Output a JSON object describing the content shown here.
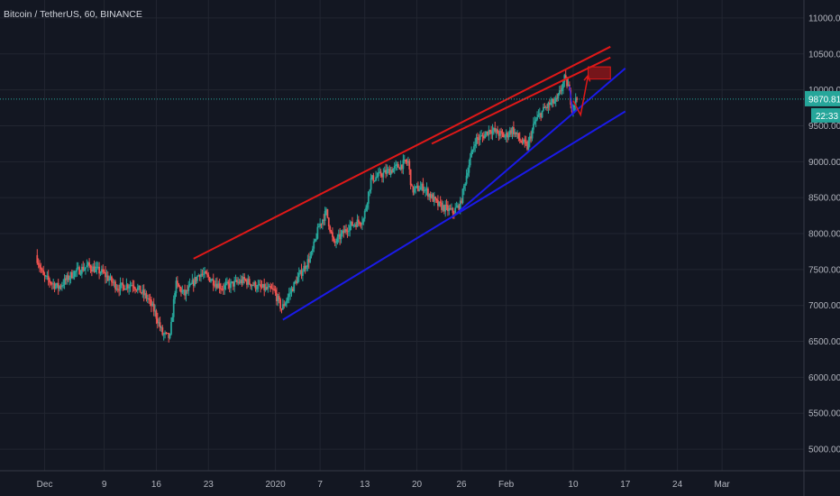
{
  "header": {
    "title": "Bitcoin / TetherUS, 60, BINANCE"
  },
  "colors": {
    "background": "#131722",
    "grid": "#222631",
    "text": "#b2b5be",
    "candle_up": "#26a69a",
    "candle_down": "#ef5350",
    "trend_red": "#e01818",
    "trend_blue": "#1a1ae8",
    "price_label_bg": "#26a69a",
    "price_line": "#26a69a"
  },
  "chart_data": {
    "type": "candlestick",
    "symbol": "Bitcoin / TetherUS",
    "interval": "60",
    "exchange": "BINANCE",
    "x_range": [
      "2019-11-25",
      "2020-03-12"
    ],
    "ylim": [
      4700,
      11250
    ],
    "y_scale": "linear",
    "y_ticks": [
      "5000.00",
      "5500.00",
      "6000.00",
      "6500.00",
      "7000.00",
      "7500.00",
      "8000.00",
      "8500.00",
      "9000.00",
      "9500.00",
      "10000.00",
      "10500.00",
      "11000.00"
    ],
    "x_ticks": [
      {
        "label": "Dec",
        "date": "2019-12-01"
      },
      {
        "label": "9",
        "date": "2019-12-09"
      },
      {
        "label": "16",
        "date": "2019-12-16"
      },
      {
        "label": "23",
        "date": "2019-12-23"
      },
      {
        "label": "2020",
        "date": "2020-01-01"
      },
      {
        "label": "7",
        "date": "2020-01-07"
      },
      {
        "label": "13",
        "date": "2020-01-13"
      },
      {
        "label": "20",
        "date": "2020-01-20"
      },
      {
        "label": "26",
        "date": "2020-01-26"
      },
      {
        "label": "Feb",
        "date": "2020-02-01"
      },
      {
        "label": "10",
        "date": "2020-02-10"
      },
      {
        "label": "17",
        "date": "2020-02-17"
      },
      {
        "label": "24",
        "date": "2020-02-24"
      },
      {
        "label": "Mar",
        "date": "2020-03-01"
      }
    ],
    "grid": true,
    "price_path": [
      {
        "date": "2019-11-30",
        "close": 7700
      },
      {
        "date": "2019-12-01",
        "close": 7400
      },
      {
        "date": "2019-12-03",
        "close": 7250
      },
      {
        "date": "2019-12-05",
        "close": 7450
      },
      {
        "date": "2019-12-07",
        "close": 7550
      },
      {
        "date": "2019-12-09",
        "close": 7450
      },
      {
        "date": "2019-12-11",
        "close": 7250
      },
      {
        "date": "2019-12-13",
        "close": 7300
      },
      {
        "date": "2019-12-15",
        "close": 7100
      },
      {
        "date": "2019-12-16",
        "close": 6900
      },
      {
        "date": "2019-12-17",
        "close": 6600
      },
      {
        "date": "2019-12-18",
        "close": 6550
      },
      {
        "date": "2019-12-18T18:00",
        "close": 7300
      },
      {
        "date": "2019-12-20",
        "close": 7150
      },
      {
        "date": "2019-12-22",
        "close": 7450
      },
      {
        "date": "2019-12-23",
        "close": 7400
      },
      {
        "date": "2019-12-25",
        "close": 7250
      },
      {
        "date": "2019-12-28",
        "close": 7350
      },
      {
        "date": "2019-12-30",
        "close": 7250
      },
      {
        "date": "2020-01-01",
        "close": 7200
      },
      {
        "date": "2020-01-02",
        "close": 6950
      },
      {
        "date": "2020-01-04",
        "close": 7350
      },
      {
        "date": "2020-01-06",
        "close": 7700
      },
      {
        "date": "2020-01-07",
        "close": 8100
      },
      {
        "date": "2020-01-08",
        "close": 8300
      },
      {
        "date": "2020-01-09",
        "close": 7850
      },
      {
        "date": "2020-01-11",
        "close": 8100
      },
      {
        "date": "2020-01-13",
        "close": 8200
      },
      {
        "date": "2020-01-14",
        "close": 8750
      },
      {
        "date": "2020-01-15",
        "close": 8800
      },
      {
        "date": "2020-01-17",
        "close": 8900
      },
      {
        "date": "2020-01-19",
        "close": 9000
      },
      {
        "date": "2020-01-19T12:00",
        "close": 8600
      },
      {
        "date": "2020-01-21",
        "close": 8650
      },
      {
        "date": "2020-01-23",
        "close": 8400
      },
      {
        "date": "2020-01-24",
        "close": 8350
      },
      {
        "date": "2020-01-25",
        "close": 8300
      },
      {
        "date": "2020-01-26",
        "close": 8400
      },
      {
        "date": "2020-01-27",
        "close": 8900
      },
      {
        "date": "2020-01-28",
        "close": 9300
      },
      {
        "date": "2020-01-29",
        "close": 9350
      },
      {
        "date": "2020-01-30",
        "close": 9450
      },
      {
        "date": "2020-02-01",
        "close": 9350
      },
      {
        "date": "2020-02-02",
        "close": 9450
      },
      {
        "date": "2020-02-03",
        "close": 9300
      },
      {
        "date": "2020-02-04",
        "close": 9200
      },
      {
        "date": "2020-02-05",
        "close": 9550
      },
      {
        "date": "2020-02-06",
        "close": 9700
      },
      {
        "date": "2020-02-07",
        "close": 9800
      },
      {
        "date": "2020-02-08",
        "close": 9850
      },
      {
        "date": "2020-02-09",
        "close": 10150
      },
      {
        "date": "2020-02-09T12:00",
        "close": 10050
      },
      {
        "date": "2020-02-10",
        "close": 9750
      },
      {
        "date": "2020-02-10T14:00",
        "close": 9870.81
      }
    ],
    "last_price": "9870.81",
    "countdown": "22:33",
    "annotations": [
      {
        "type": "trendline",
        "color": "red",
        "from": {
          "date": "2019-12-21",
          "price": 7650
        },
        "to": {
          "date": "2020-02-15",
          "price": 10600
        }
      },
      {
        "type": "trendline",
        "color": "red",
        "from": {
          "date": "2020-01-22",
          "price": 9250
        },
        "to": {
          "date": "2020-02-15",
          "price": 10450
        }
      },
      {
        "type": "trendline",
        "color": "blue",
        "from": {
          "date": "2020-01-02",
          "price": 6800
        },
        "to": {
          "date": "2020-02-17",
          "price": 9700
        }
      },
      {
        "type": "trendline",
        "color": "blue",
        "from": {
          "date": "2020-01-25",
          "price": 8250
        },
        "to": {
          "date": "2020-02-17",
          "price": 10300
        }
      },
      {
        "type": "path",
        "color": "blue",
        "points": [
          {
            "date": "2020-02-09T12:00",
            "price": 10050
          },
          {
            "date": "2020-02-10",
            "price": 9650
          }
        ]
      },
      {
        "type": "arrow",
        "color": "red",
        "points": [
          {
            "date": "2020-02-10",
            "price": 9850
          },
          {
            "date": "2020-02-11",
            "price": 9650
          },
          {
            "date": "2020-02-12",
            "price": 10200
          }
        ]
      },
      {
        "type": "rectangle",
        "color": "red",
        "from": {
          "date": "2020-02-12",
          "price": 10320
        },
        "to": {
          "date": "2020-02-15",
          "price": 10150
        }
      }
    ]
  }
}
